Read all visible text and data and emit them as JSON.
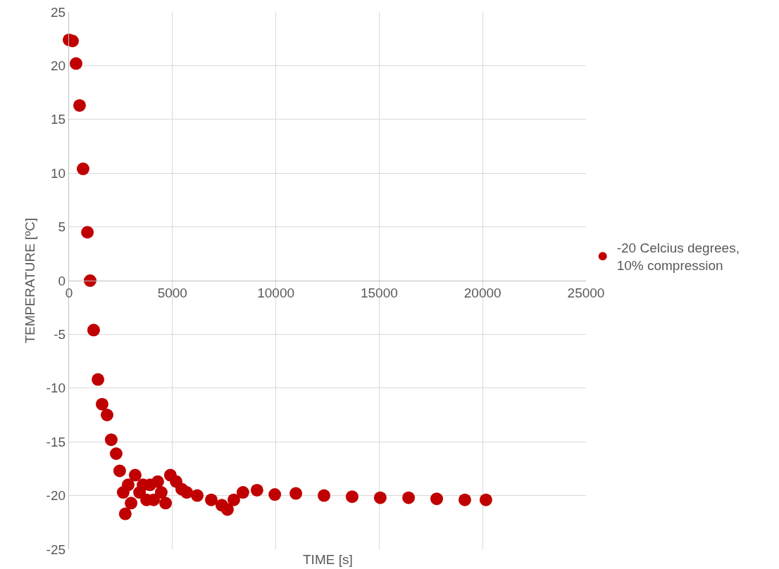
{
  "chart_data": {
    "type": "scatter",
    "xlabel": "TIME [s]",
    "ylabel": "TEMPERATURE [ºC]",
    "xlim": [
      0,
      25000
    ],
    "xticks": [
      0,
      5000,
      10000,
      15000,
      20000,
      25000
    ],
    "ylim": [
      -25,
      25
    ],
    "yticks": [
      -25,
      -20,
      -15,
      -10,
      -5,
      0,
      5,
      10,
      15,
      20,
      25
    ],
    "grid": true,
    "legend": "right",
    "marker": "circle",
    "series": [
      {
        "name": "-20 Celcius degrees, 10% compression",
        "color": "#c00000",
        "x": [
          0,
          170,
          340,
          510,
          680,
          890,
          1020,
          1190,
          1400,
          1600,
          1840,
          2040,
          2280,
          2450,
          2620,
          2720,
          2860,
          3000,
          3200,
          3410,
          3580,
          3750,
          3920,
          4090,
          4290,
          4460,
          4670,
          4900,
          5180,
          5450,
          5690,
          6200,
          6880,
          7390,
          7660,
          7970,
          8410,
          9090,
          9950,
          10970,
          12330,
          13690,
          15050,
          16420,
          17780,
          19140,
          20160
        ],
        "values": [
          22.4,
          22.3,
          20.2,
          16.3,
          10.4,
          4.5,
          0,
          -4.6,
          -9.2,
          -11.5,
          -12.5,
          -14.8,
          -16.1,
          -17.7,
          -19.7,
          -21.7,
          -19.0,
          -20.7,
          -18.1,
          -19.7,
          -19.0,
          -20.4,
          -19.0,
          -20.4,
          -18.7,
          -19.7,
          -20.7,
          -18.1,
          -18.7,
          -19.4,
          -19.7,
          -20.0,
          -20.4,
          -20.9,
          -21.3,
          -20.4,
          -19.7,
          -19.5,
          -19.9,
          -19.8,
          -20.0,
          -20.1,
          -20.2,
          -20.2,
          -20.3,
          -20.4,
          -20.4
        ]
      }
    ]
  }
}
